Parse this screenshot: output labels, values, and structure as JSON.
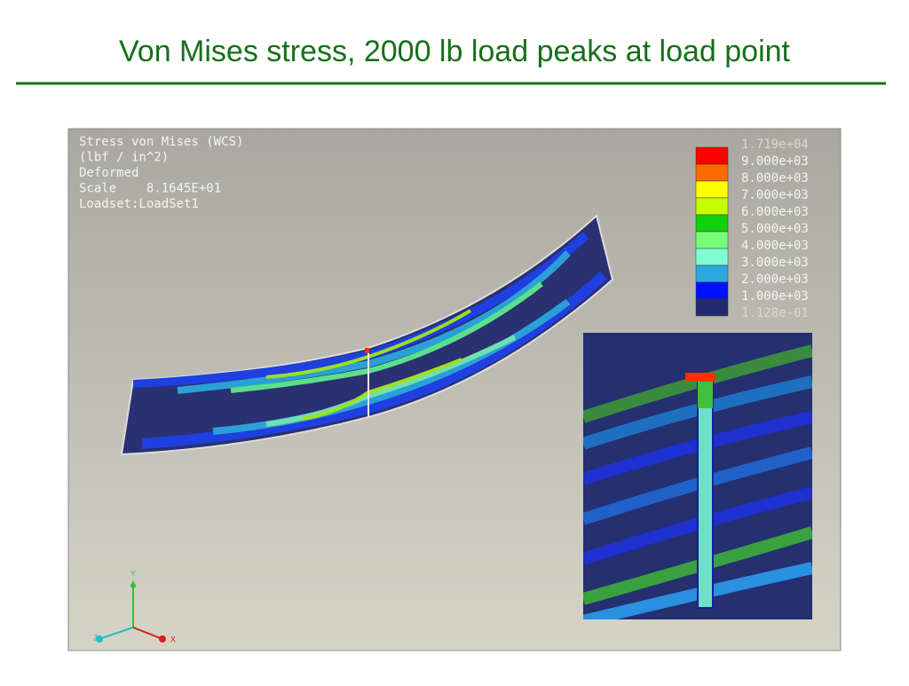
{
  "header": {
    "title": "Von Mises stress, 2000 lb load peaks at load point"
  },
  "info": [
    "Stress von Mises (WCS)",
    "(lbf / in^2)",
    "Deformed",
    "Scale    8.1645E+01",
    "Loadset:LoadSet1"
  ],
  "legend": {
    "labels": [
      "1.719e+04",
      "9.000e+03",
      "8.000e+03",
      "7.000e+03",
      "6.000e+03",
      "5.000e+03",
      "4.000e+03",
      "3.000e+03",
      "2.000e+03",
      "1.000e+03",
      "1.128e-01"
    ]
  },
  "axes": {
    "x": "X",
    "y": "Y",
    "z": "Z"
  }
}
